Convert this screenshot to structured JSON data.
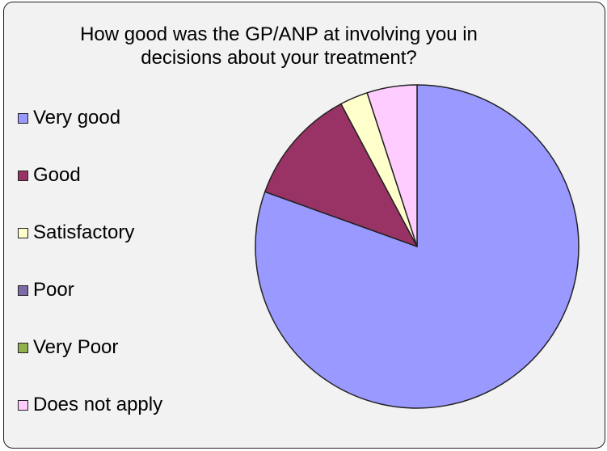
{
  "chart_data": {
    "type": "pie",
    "title_lines": [
      "How good was the GP/ANP at involving you in",
      "decisions about your treatment?"
    ],
    "legend_placement": "left",
    "start": "top, clockwise",
    "categories": [
      "Very good",
      "Good",
      "Satisfactory",
      "Poor",
      "Very Poor",
      "Does not apply"
    ],
    "values": [
      80.5,
      11.7,
      2.8,
      0,
      0,
      5.0
    ],
    "colors": [
      "#9999ff",
      "#993366",
      "#ffffcc",
      "#7f6aa8",
      "#8fb04a",
      "#ffccff"
    ]
  }
}
